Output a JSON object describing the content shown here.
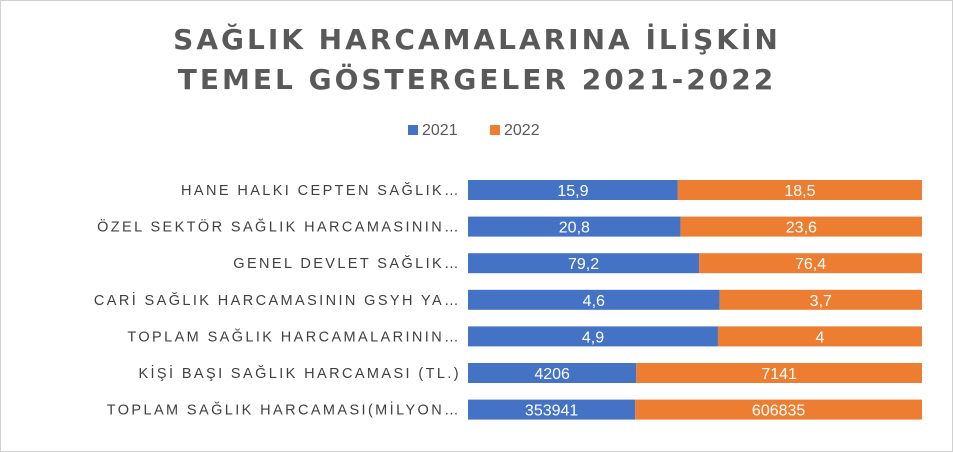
{
  "chart_data": {
    "type": "bar",
    "orientation": "horizontal",
    "stacked": "percent",
    "title_lines": [
      "SAĞLIK HARCAMALARINA İLİŞKİN",
      "TEMEL GÖSTERGELER 2021-2022"
    ],
    "legend_position": "top",
    "grid": false,
    "categories": [
      "HANE HALKI CEPTEN SAĞLIK…",
      "ÖZEL SEKTÖR SAĞLIK HARCAMASININ…",
      "GENEL DEVLET SAĞLIK…",
      "CARİ SAĞLIK HARCAMASININ GSYH YA…",
      "TOPLAM SAĞLIK HARCAMALARININ…",
      "KİŞİ BAŞI SAĞLIK HARCAMASI (TL.)",
      "TOPLAM SAĞLIK HARCAMASI(MİLYON…"
    ],
    "series": [
      {
        "name": "2021",
        "color": "#4472C4",
        "values": [
          15.9,
          20.8,
          79.2,
          4.6,
          4.9,
          4206,
          353941
        ],
        "labels": [
          "15,9",
          "20,8",
          "79,2",
          "4,6",
          "4,9",
          "4206",
          "353941"
        ]
      },
      {
        "name": "2022",
        "color": "#ED7D31",
        "values": [
          18.5,
          23.6,
          76.4,
          3.7,
          4,
          7141,
          606835
        ],
        "labels": [
          "18,5",
          "23,6",
          "76,4",
          "3,7",
          "4",
          "7141",
          "606835"
        ]
      }
    ]
  }
}
